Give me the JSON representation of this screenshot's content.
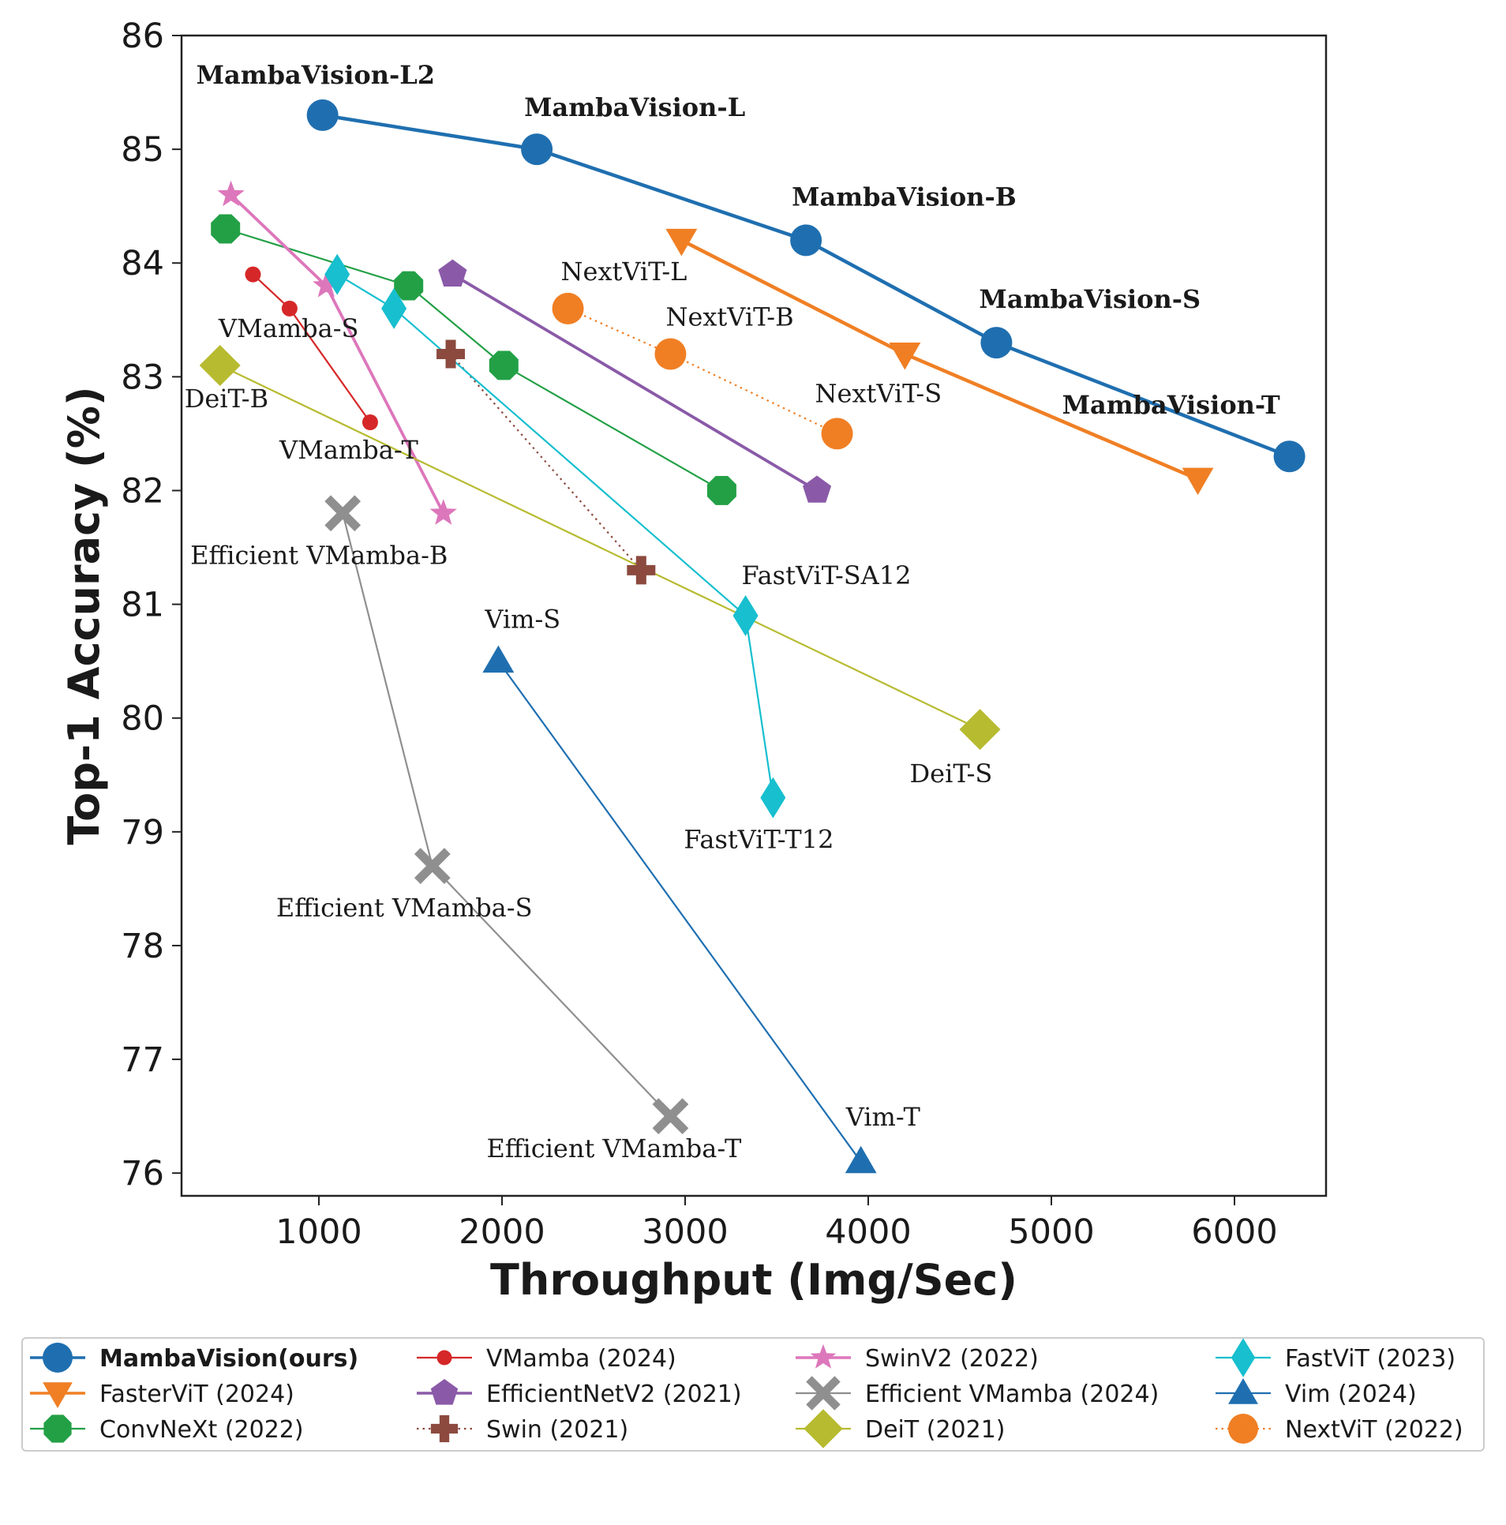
{
  "chart_data": {
    "type": "scatter",
    "xlabel": "Throughput (Img/Sec)",
    "ylabel": "Top-1 Accuracy (%)",
    "xlim": [
      250,
      6500
    ],
    "ylim": [
      75.8,
      86
    ],
    "xticks": [
      1000,
      2000,
      3000,
      4000,
      5000,
      6000
    ],
    "yticks": [
      76,
      77,
      78,
      79,
      80,
      81,
      82,
      83,
      84,
      85,
      86
    ],
    "legend_position": "bottom",
    "series": [
      {
        "name": "MambaVision(ours)",
        "color": "#1f6fb0",
        "marker": "circle",
        "line": "solid",
        "bold": true,
        "points": [
          {
            "x": 1020,
            "y": 85.3,
            "label": "MambaVision-L2"
          },
          {
            "x": 2190,
            "y": 85.0,
            "label": "MambaVision-L"
          },
          {
            "x": 3660,
            "y": 84.2,
            "label": "MambaVision-B"
          },
          {
            "x": 4700,
            "y": 83.3,
            "label": "MambaVision-S"
          },
          {
            "x": 6300,
            "y": 82.3,
            "label": "MambaVision-T"
          }
        ]
      },
      {
        "name": "FasterViT (2024)",
        "color": "#f07f24",
        "marker": "triangle-down",
        "line": "solid",
        "points": [
          {
            "x": 2980,
            "y": 84.2
          },
          {
            "x": 4200,
            "y": 83.2
          },
          {
            "x": 5800,
            "y": 82.1
          }
        ]
      },
      {
        "name": "ConvNeXt (2022)",
        "color": "#23a046",
        "marker": "octagon",
        "line": "solid",
        "points": [
          {
            "x": 490,
            "y": 84.3
          },
          {
            "x": 1490,
            "y": 83.8
          },
          {
            "x": 2010,
            "y": 83.1
          },
          {
            "x": 3200,
            "y": 82.0
          }
        ]
      },
      {
        "name": "VMamba (2024)",
        "color": "#d62728",
        "marker": "small-circle",
        "line": "solid",
        "points": [
          {
            "x": 640,
            "y": 83.9
          },
          {
            "x": 840,
            "y": 83.6,
            "label": "VMamba-S"
          },
          {
            "x": 1280,
            "y": 82.6,
            "label": "VMamba-T"
          }
        ]
      },
      {
        "name": "EfficientNetV2 (2021)",
        "color": "#8a5aa8",
        "marker": "pentagon",
        "line": "solid",
        "points": [
          {
            "x": 1730,
            "y": 83.9
          },
          {
            "x": 3720,
            "y": 82.0
          }
        ]
      },
      {
        "name": "Swin (2021)",
        "color": "#8c4a3f",
        "marker": "plus",
        "line": "dotted",
        "points": [
          {
            "x": 1720,
            "y": 83.2
          },
          {
            "x": 2760,
            "y": 81.3
          }
        ]
      },
      {
        "name": "SwinV2 (2022)",
        "color": "#dd77bb",
        "marker": "star",
        "line": "solid",
        "points": [
          {
            "x": 520,
            "y": 84.6
          },
          {
            "x": 1040,
            "y": 83.8
          },
          {
            "x": 1680,
            "y": 81.8
          }
        ]
      },
      {
        "name": "Efficient VMamba (2024)",
        "color": "#8f8f8f",
        "marker": "x",
        "line": "solid",
        "points": [
          {
            "x": 1130,
            "y": 81.8,
            "label": "Efficient VMamba-B"
          },
          {
            "x": 1620,
            "y": 78.7,
            "label": "Efficient VMamba-S"
          },
          {
            "x": 2920,
            "y": 76.5,
            "label": "Efficient VMamba-T"
          }
        ]
      },
      {
        "name": "DeiT (2021)",
        "color": "#b7bb30",
        "marker": "diamond",
        "line": "solid",
        "points": [
          {
            "x": 460,
            "y": 83.1,
            "label": "DeiT-B"
          },
          {
            "x": 4610,
            "y": 79.9,
            "label": "DeiT-S"
          }
        ]
      },
      {
        "name": "FastViT (2023)",
        "color": "#17bfcf",
        "marker": "thin-diamond",
        "line": "solid",
        "points": [
          {
            "x": 1100,
            "y": 83.9
          },
          {
            "x": 1410,
            "y": 83.6
          },
          {
            "x": 3330,
            "y": 80.9,
            "label": "FastViT-SA12"
          },
          {
            "x": 3480,
            "y": 79.3,
            "label": "FastViT-T12"
          }
        ]
      },
      {
        "name": "Vim (2024)",
        "color": "#1f6fb0",
        "marker": "triangle-up",
        "line": "solid",
        "thin": true,
        "points": [
          {
            "x": 1980,
            "y": 80.5,
            "label": "Vim-S"
          },
          {
            "x": 3960,
            "y": 76.1,
            "label": "Vim-T"
          }
        ]
      },
      {
        "name": "NextViT (2022)",
        "color": "#f07f24",
        "marker": "circle",
        "line": "dotted",
        "points": [
          {
            "x": 2360,
            "y": 83.6,
            "label": "NextViT-L"
          },
          {
            "x": 2920,
            "y": 83.2,
            "label": "NextViT-B"
          },
          {
            "x": 3830,
            "y": 82.5,
            "label": "NextViT-S"
          }
        ]
      }
    ]
  }
}
